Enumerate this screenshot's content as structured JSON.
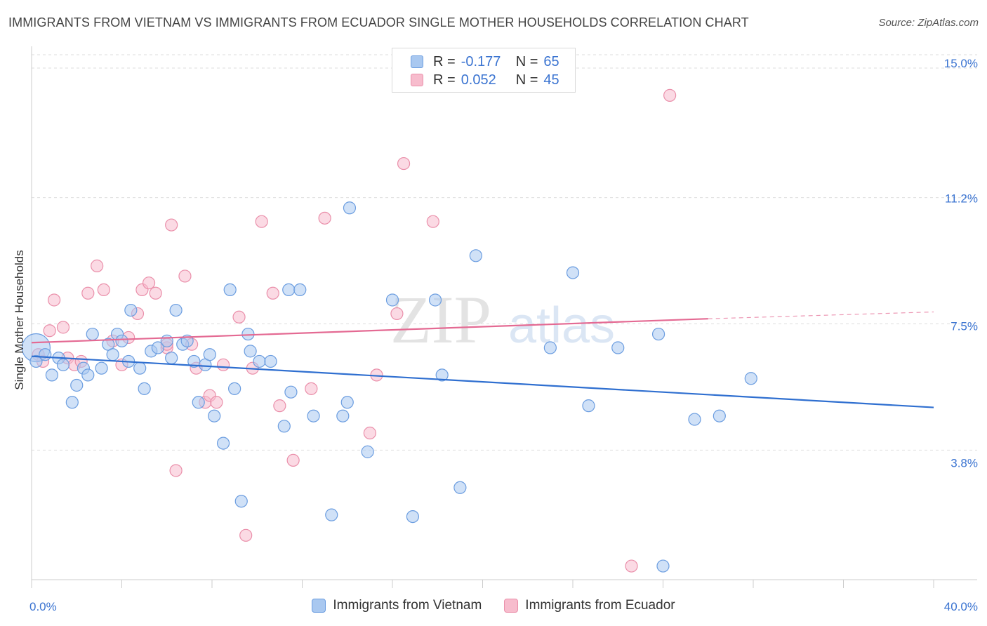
{
  "title": "IMMIGRANTS FROM VIETNAM VS IMMIGRANTS FROM ECUADOR SINGLE MOTHER HOUSEHOLDS CORRELATION CHART",
  "source": "Source: ZipAtlas.com",
  "watermark": {
    "zip": "ZIP",
    "atlas": "atlas"
  },
  "colors": {
    "vietnam_fill": "#a9c8f0",
    "vietnam_stroke": "#6b9de0",
    "vietnam_line": "#2f6fd0",
    "ecuador_fill": "#f7bccd",
    "ecuador_stroke": "#ea8faa",
    "ecuador_line": "#e46a93",
    "axis_text": "#3b74d1",
    "grid": "#dddddd"
  },
  "legend_top": {
    "rows": [
      {
        "r_label": "R =",
        "r_value": "-0.177",
        "n_label": "N =",
        "n_value": "65"
      },
      {
        "r_label": "R =",
        "r_value": "0.052",
        "n_label": "N =",
        "n_value": "45"
      }
    ]
  },
  "legend_bottom": {
    "items": [
      {
        "label": "Immigrants from Vietnam"
      },
      {
        "label": "Immigrants from Ecuador"
      }
    ]
  },
  "chart_data": {
    "type": "scatter",
    "title": "IMMIGRANTS FROM VIETNAM VS IMMIGRANTS FROM ECUADOR SINGLE MOTHER HOUSEHOLDS CORRELATION CHART",
    "xlabel": "",
    "ylabel": "Single Mother Households",
    "xlim": [
      0,
      40
    ],
    "ylim": [
      0,
      16
    ],
    "x_tick_labels": [
      "0.0%",
      "40.0%"
    ],
    "y_ticks": [
      3.8,
      7.5,
      11.2,
      15.0
    ],
    "y_tick_labels": [
      "3.8%",
      "7.5%",
      "11.2%",
      "15.0%"
    ],
    "grid": "horizontal dashed",
    "legend_position": "top-center",
    "series": [
      {
        "name": "Immigrants from Vietnam",
        "trend": {
          "x": [
            0,
            40
          ],
          "y": [
            6.55,
            5.05
          ]
        },
        "points": [
          {
            "x": 0.2,
            "y": 6.8,
            "big": true
          },
          {
            "x": 0.2,
            "y": 6.4
          },
          {
            "x": 0.6,
            "y": 6.6
          },
          {
            "x": 0.9,
            "y": 6.0
          },
          {
            "x": 1.2,
            "y": 6.5
          },
          {
            "x": 1.4,
            "y": 6.3
          },
          {
            "x": 1.8,
            "y": 5.2
          },
          {
            "x": 2.0,
            "y": 5.7
          },
          {
            "x": 2.3,
            "y": 6.2
          },
          {
            "x": 2.5,
            "y": 6.0
          },
          {
            "x": 2.7,
            "y": 7.2
          },
          {
            "x": 3.1,
            "y": 6.2
          },
          {
            "x": 3.4,
            "y": 6.9
          },
          {
            "x": 3.6,
            "y": 6.6
          },
          {
            "x": 3.8,
            "y": 7.2
          },
          {
            "x": 4.0,
            "y": 7.0
          },
          {
            "x": 4.3,
            "y": 6.4
          },
          {
            "x": 4.4,
            "y": 7.9
          },
          {
            "x": 4.8,
            "y": 6.2
          },
          {
            "x": 5.0,
            "y": 5.6
          },
          {
            "x": 5.3,
            "y": 6.7
          },
          {
            "x": 5.6,
            "y": 6.8
          },
          {
            "x": 6.0,
            "y": 7.0
          },
          {
            "x": 6.2,
            "y": 6.5
          },
          {
            "x": 6.4,
            "y": 7.9
          },
          {
            "x": 6.7,
            "y": 6.9
          },
          {
            "x": 6.9,
            "y": 7.0
          },
          {
            "x": 7.2,
            "y": 6.4
          },
          {
            "x": 7.4,
            "y": 5.2
          },
          {
            "x": 7.7,
            "y": 6.3
          },
          {
            "x": 7.9,
            "y": 6.6
          },
          {
            "x": 8.1,
            "y": 4.8
          },
          {
            "x": 8.5,
            "y": 4.0
          },
          {
            "x": 8.8,
            "y": 8.5
          },
          {
            "x": 9.0,
            "y": 5.6
          },
          {
            "x": 9.3,
            "y": 2.3
          },
          {
            "x": 9.6,
            "y": 7.2
          },
          {
            "x": 9.7,
            "y": 6.7
          },
          {
            "x": 10.1,
            "y": 6.4
          },
          {
            "x": 10.6,
            "y": 6.4
          },
          {
            "x": 11.2,
            "y": 4.5
          },
          {
            "x": 11.4,
            "y": 8.5
          },
          {
            "x": 11.5,
            "y": 5.5
          },
          {
            "x": 11.9,
            "y": 8.5
          },
          {
            "x": 12.5,
            "y": 4.8
          },
          {
            "x": 13.3,
            "y": 1.9
          },
          {
            "x": 13.8,
            "y": 4.8
          },
          {
            "x": 14.0,
            "y": 5.2
          },
          {
            "x": 14.1,
            "y": 10.9
          },
          {
            "x": 14.9,
            "y": 3.75
          },
          {
            "x": 16.0,
            "y": 8.2
          },
          {
            "x": 16.9,
            "y": 1.85
          },
          {
            "x": 17.9,
            "y": 8.2
          },
          {
            "x": 18.2,
            "y": 6.0
          },
          {
            "x": 19.0,
            "y": 2.7
          },
          {
            "x": 19.7,
            "y": 9.5
          },
          {
            "x": 23.0,
            "y": 6.8
          },
          {
            "x": 24.0,
            "y": 9.0
          },
          {
            "x": 24.7,
            "y": 5.1
          },
          {
            "x": 26.0,
            "y": 6.8
          },
          {
            "x": 27.8,
            "y": 7.2
          },
          {
            "x": 28.0,
            "y": 0.4
          },
          {
            "x": 29.4,
            "y": 4.7
          },
          {
            "x": 30.5,
            "y": 4.8
          },
          {
            "x": 31.9,
            "y": 5.9
          }
        ]
      },
      {
        "name": "Immigrants from Ecuador",
        "trend": {
          "x": [
            0,
            30
          ],
          "y": [
            6.95,
            7.65
          ]
        },
        "trend_extension": {
          "x": [
            30,
            40
          ],
          "y": [
            7.65,
            7.85
          ]
        },
        "points": [
          {
            "x": 0.3,
            "y": 6.6
          },
          {
            "x": 0.5,
            "y": 6.4
          },
          {
            "x": 0.8,
            "y": 7.3
          },
          {
            "x": 1.0,
            "y": 8.2
          },
          {
            "x": 1.4,
            "y": 7.4
          },
          {
            "x": 1.6,
            "y": 6.5
          },
          {
            "x": 1.9,
            "y": 6.3
          },
          {
            "x": 2.2,
            "y": 6.4
          },
          {
            "x": 2.5,
            "y": 8.4
          },
          {
            "x": 2.9,
            "y": 9.2
          },
          {
            "x": 3.2,
            "y": 8.5
          },
          {
            "x": 3.6,
            "y": 7.0
          },
          {
            "x": 4.0,
            "y": 6.3
          },
          {
            "x": 4.3,
            "y": 7.1
          },
          {
            "x": 4.7,
            "y": 7.8
          },
          {
            "x": 4.9,
            "y": 8.5
          },
          {
            "x": 5.2,
            "y": 8.7
          },
          {
            "x": 5.5,
            "y": 8.4
          },
          {
            "x": 6.0,
            "y": 6.8
          },
          {
            "x": 6.2,
            "y": 10.4
          },
          {
            "x": 6.4,
            "y": 3.2
          },
          {
            "x": 6.8,
            "y": 8.9
          },
          {
            "x": 7.1,
            "y": 6.9
          },
          {
            "x": 7.3,
            "y": 6.2
          },
          {
            "x": 7.7,
            "y": 5.2
          },
          {
            "x": 7.9,
            "y": 5.4
          },
          {
            "x": 8.2,
            "y": 5.2
          },
          {
            "x": 8.5,
            "y": 6.3
          },
          {
            "x": 9.2,
            "y": 7.7
          },
          {
            "x": 9.5,
            "y": 1.3
          },
          {
            "x": 9.8,
            "y": 6.2
          },
          {
            "x": 10.2,
            "y": 10.5
          },
          {
            "x": 10.7,
            "y": 8.4
          },
          {
            "x": 11.0,
            "y": 5.1
          },
          {
            "x": 11.6,
            "y": 3.5
          },
          {
            "x": 12.4,
            "y": 5.6
          },
          {
            "x": 13.0,
            "y": 10.6
          },
          {
            "x": 15.0,
            "y": 4.3
          },
          {
            "x": 15.3,
            "y": 6.0
          },
          {
            "x": 16.2,
            "y": 7.8
          },
          {
            "x": 16.5,
            "y": 12.2
          },
          {
            "x": 17.8,
            "y": 10.5
          },
          {
            "x": 26.6,
            "y": 0.4
          },
          {
            "x": 28.3,
            "y": 14.2
          },
          {
            "x": 6.0,
            "y": 6.9
          }
        ]
      }
    ]
  }
}
